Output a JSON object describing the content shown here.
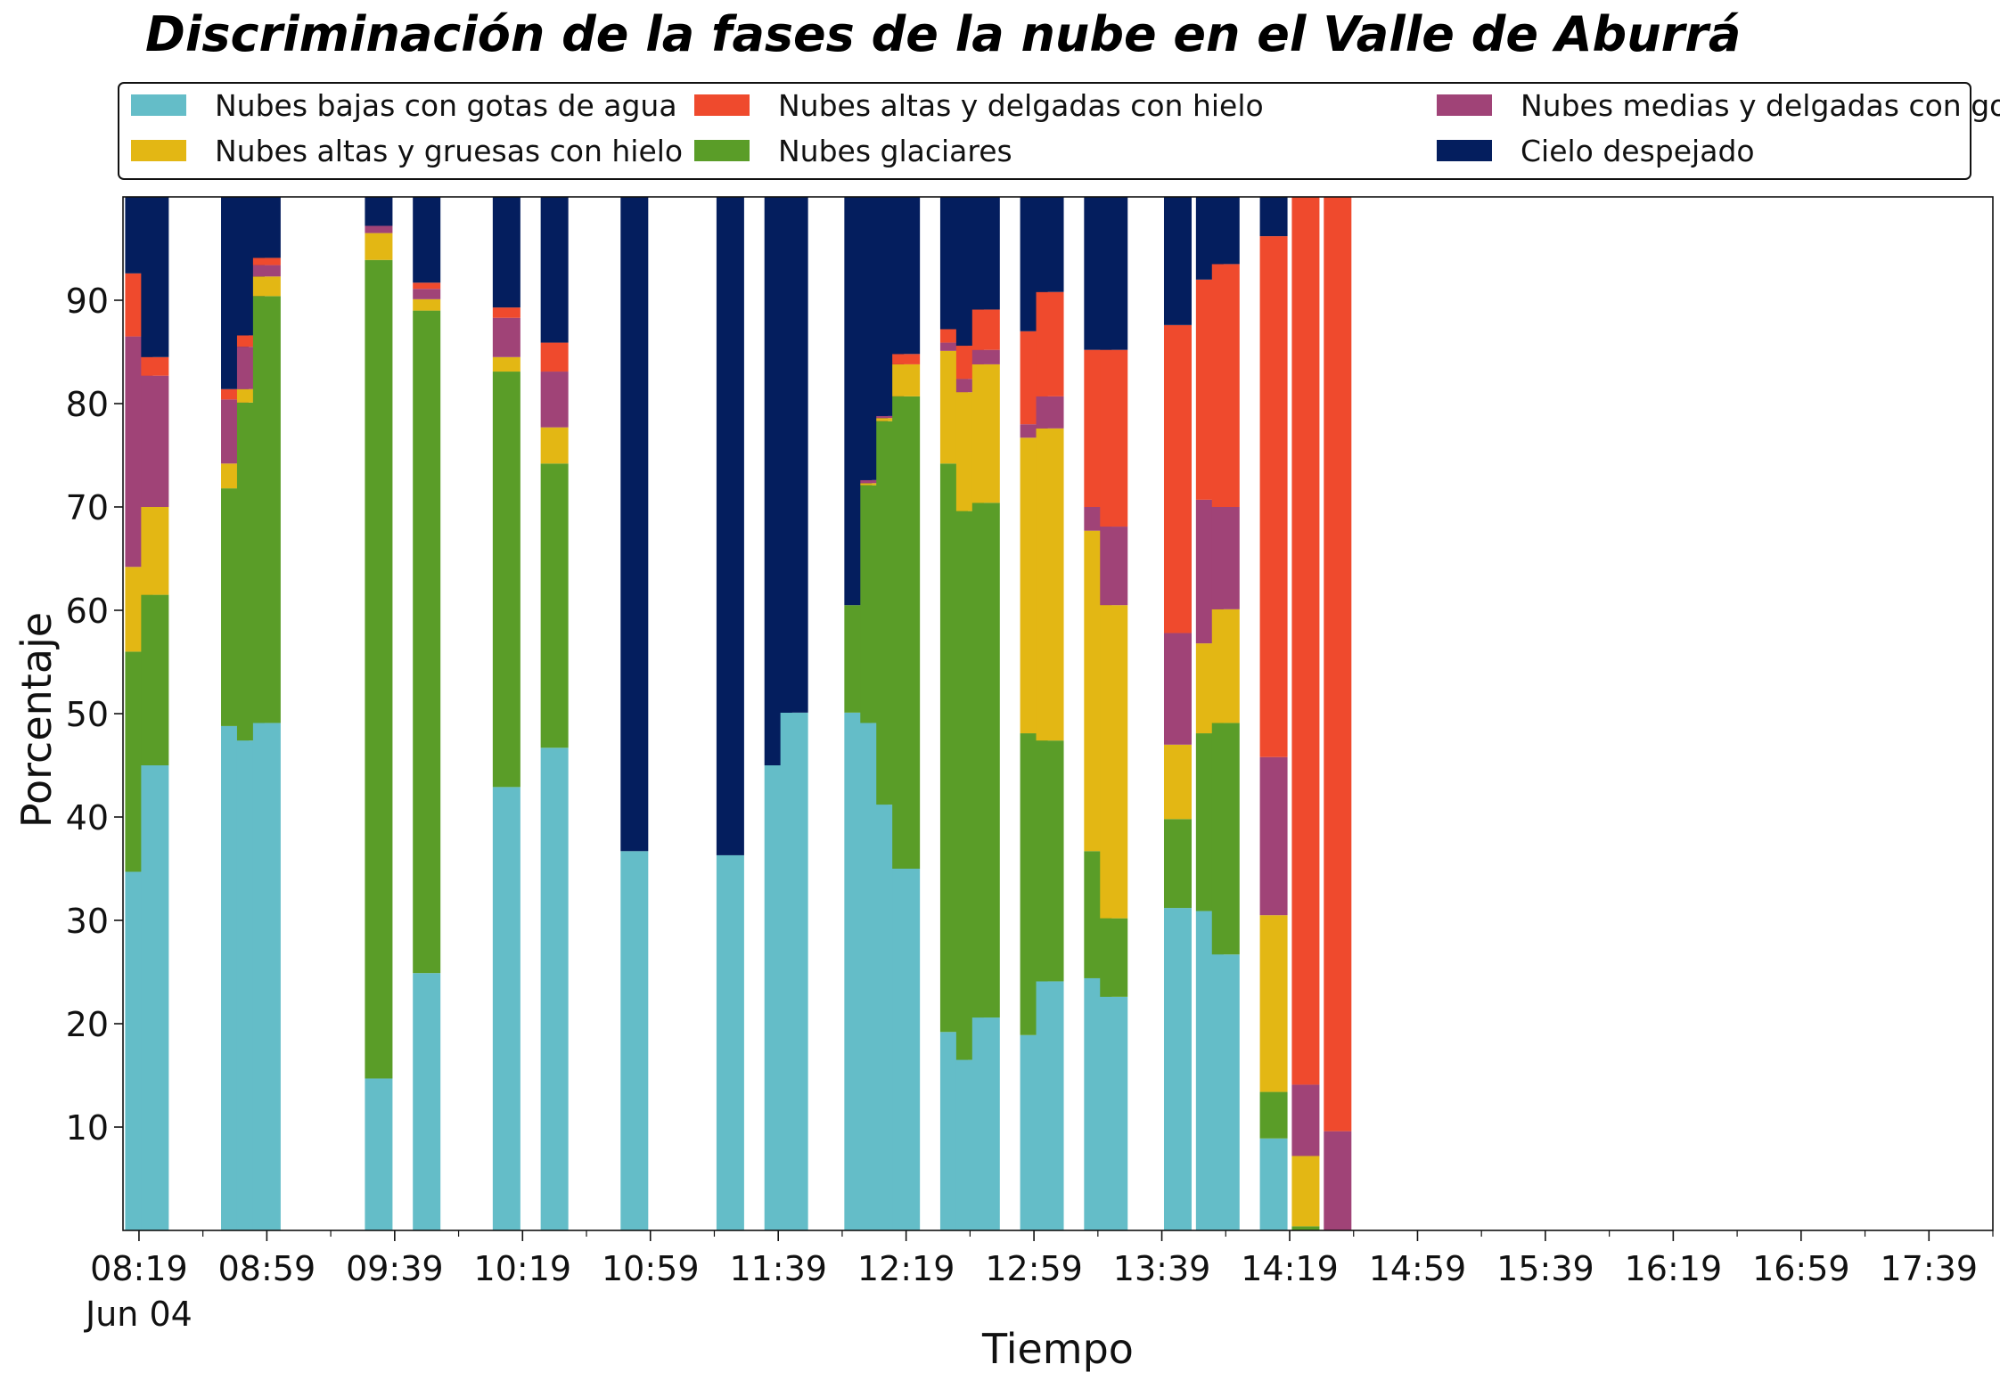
{
  "chart_data": {
    "type": "bar",
    "stacked": true,
    "title": "Discriminación de la fases de la nube en el Valle de Aburrá",
    "xlabel": "Tiempo",
    "ylabel": "Porcentaje",
    "ylim": [
      0,
      100
    ],
    "yticks": [
      10,
      20,
      30,
      40,
      50,
      60,
      70,
      80,
      90
    ],
    "xticks": [
      "08:19",
      "08:59",
      "09:39",
      "10:19",
      "10:59",
      "11:39",
      "12:19",
      "12:59",
      "13:39",
      "14:19",
      "14:59",
      "15:39",
      "16:19",
      "16:59",
      "17:39"
    ],
    "x_date_label": "Jun 04",
    "legend_position": "top, above plot",
    "grid": false,
    "series_names": [
      "Nubes bajas con gotas de agua",
      "Nubes glaciares",
      "Nubes altas y gruesas con hielo",
      "Nubes medias y delgadas con gotas de agua",
      "Nubes altas y delgadas con hielo",
      "Cielo despejado"
    ],
    "legend_order": [
      0,
      2,
      4,
      1,
      3,
      5
    ],
    "colors": [
      "#64bdc8",
      "#5a9d28",
      "#e3b714",
      "#a04377",
      "#ef4a2d",
      "#041e5e"
    ],
    "bars": [
      {
        "time": "08:19",
        "values": [
          34.7,
          21.3,
          8.2,
          22.3,
          6.1,
          7.4
        ]
      },
      {
        "time": "08:24",
        "values": [
          45.0,
          16.5,
          8.5,
          12.7,
          1.8,
          15.5
        ]
      },
      {
        "time": "08:49",
        "values": [
          48.8,
          23.0,
          2.4,
          6.2,
          1.0,
          18.6
        ]
      },
      {
        "time": "08:54",
        "values": [
          47.4,
          32.7,
          1.3,
          4.1,
          1.1,
          13.4
        ]
      },
      {
        "time": "08:59",
        "values": [
          49.1,
          41.3,
          1.9,
          1.1,
          0.7,
          5.9
        ]
      },
      {
        "time": "09:34",
        "values": [
          14.7,
          79.2,
          2.6,
          0.7,
          0.0,
          2.8
        ]
      },
      {
        "time": "09:49",
        "values": [
          24.9,
          64.1,
          1.1,
          1.0,
          0.6,
          8.3
        ]
      },
      {
        "time": "10:14",
        "values": [
          42.9,
          40.2,
          1.4,
          3.8,
          1.0,
          10.7
        ]
      },
      {
        "time": "10:29",
        "values": [
          46.7,
          27.5,
          3.5,
          5.4,
          2.8,
          14.1
        ]
      },
      {
        "time": "10:54",
        "values": [
          36.7,
          0,
          0,
          0,
          0,
          63.3
        ]
      },
      {
        "time": "11:24",
        "values": [
          36.3,
          0,
          0,
          0,
          0,
          63.7
        ]
      },
      {
        "time": "11:39",
        "values": [
          45.0,
          0,
          0,
          0,
          0,
          55.0
        ]
      },
      {
        "time": "11:44",
        "values": [
          50.1,
          0,
          0,
          0,
          0,
          49.9
        ]
      },
      {
        "time": "12:04",
        "values": [
          50.1,
          10.4,
          0,
          0,
          0,
          39.5
        ]
      },
      {
        "time": "12:09",
        "values": [
          49.1,
          23.0,
          0.2,
          0.3,
          0,
          27.4
        ]
      },
      {
        "time": "12:14",
        "values": [
          41.2,
          37.1,
          0.3,
          0.2,
          0,
          21.2
        ]
      },
      {
        "time": "12:19",
        "values": [
          35.0,
          45.7,
          3.1,
          0,
          1.0,
          15.2
        ]
      },
      {
        "time": "12:34",
        "values": [
          19.2,
          55.0,
          10.9,
          0.8,
          1.3,
          12.8
        ]
      },
      {
        "time": "12:39",
        "values": [
          16.5,
          53.1,
          11.5,
          1.3,
          3.2,
          14.4
        ]
      },
      {
        "time": "12:44",
        "values": [
          20.6,
          49.8,
          13.4,
          1.4,
          3.9,
          10.9
        ]
      },
      {
        "time": "12:59",
        "values": [
          18.9,
          29.2,
          28.6,
          1.3,
          9.0,
          13.0
        ]
      },
      {
        "time": "13:04",
        "values": [
          24.1,
          23.3,
          30.2,
          3.1,
          10.1,
          9.2
        ]
      },
      {
        "time": "13:19",
        "values": [
          24.4,
          12.3,
          31.0,
          2.3,
          15.2,
          14.8
        ]
      },
      {
        "time": "13:24",
        "values": [
          22.6,
          7.6,
          30.3,
          7.6,
          17.1,
          14.8
        ]
      },
      {
        "time": "13:44",
        "values": [
          31.2,
          8.6,
          7.2,
          10.8,
          29.8,
          12.4
        ]
      },
      {
        "time": "13:54",
        "values": [
          30.9,
          17.2,
          8.7,
          13.9,
          21.3,
          8.0
        ]
      },
      {
        "time": "13:59",
        "values": [
          26.7,
          22.4,
          11.0,
          9.9,
          23.5,
          6.5
        ]
      },
      {
        "time": "14:14",
        "values": [
          8.9,
          4.5,
          17.1,
          15.3,
          50.4,
          3.8
        ]
      },
      {
        "time": "14:24",
        "values": [
          0,
          0.4,
          6.8,
          6.9,
          85.9,
          0
        ]
      },
      {
        "time": "14:34",
        "values": [
          0,
          0,
          0,
          9.6,
          90.4,
          0
        ]
      }
    ]
  }
}
